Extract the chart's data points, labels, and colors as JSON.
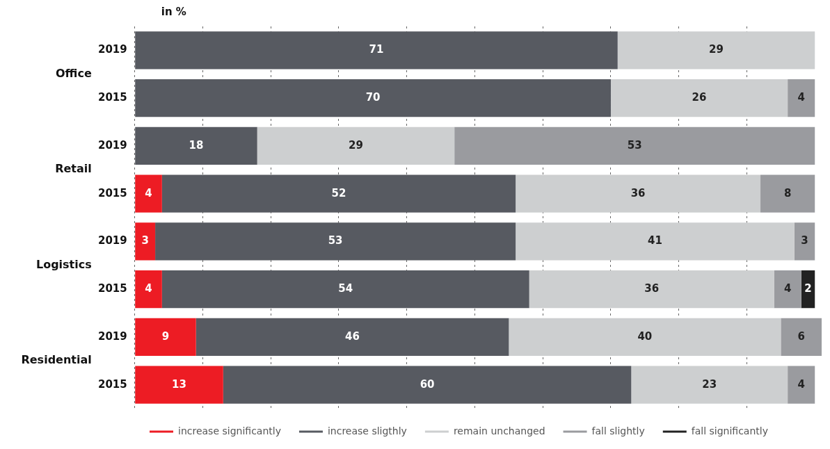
{
  "chart_data": {
    "type": "bar",
    "orientation": "horizontal",
    "stacked": true,
    "xlabel": "in %",
    "categories": [
      "2019",
      "2015",
      "2019",
      "2015",
      "2019",
      "2015",
      "2019",
      "2015"
    ],
    "annotations": [
      "Office",
      "Retail",
      "Logistics",
      "Residential"
    ],
    "series": [
      {
        "name": "increase significantly",
        "color": "#ed1c24",
        "values": [
          null,
          null,
          null,
          4,
          3,
          4,
          9,
          13
        ]
      },
      {
        "name": "increase sligthly",
        "color": "#575a61",
        "values": [
          71,
          70,
          18,
          52,
          53,
          54,
          46,
          60
        ]
      },
      {
        "name": "remain unchanged",
        "color": "#cdcfd0",
        "values": [
          29,
          26,
          29,
          36,
          41,
          36,
          40,
          23
        ]
      },
      {
        "name": "fall slightly",
        "color": "#9a9b9f",
        "values": [
          null,
          4,
          53,
          8,
          3,
          4,
          6,
          4
        ]
      },
      {
        "name": "fall significantly",
        "color": "#222222",
        "values": [
          null,
          null,
          null,
          null,
          null,
          2,
          null,
          null
        ]
      }
    ],
    "xlim": [
      0,
      101
    ],
    "xticks": [
      {
        "value": 0,
        "label": null
      },
      {
        "value": 10,
        "label": null
      },
      {
        "value": 20,
        "label": null
      },
      {
        "value": 30,
        "label": null
      },
      {
        "value": 40,
        "label": null
      },
      {
        "value": 50,
        "label": null
      },
      {
        "value": 60,
        "label": null
      },
      {
        "value": 70,
        "label": null
      },
      {
        "value": 80,
        "label": null
      },
      {
        "value": 90,
        "label": null
      }
    ],
    "tick_labels": "y",
    "grid": "x",
    "legend": "bottom",
    "data_labels": true
  }
}
